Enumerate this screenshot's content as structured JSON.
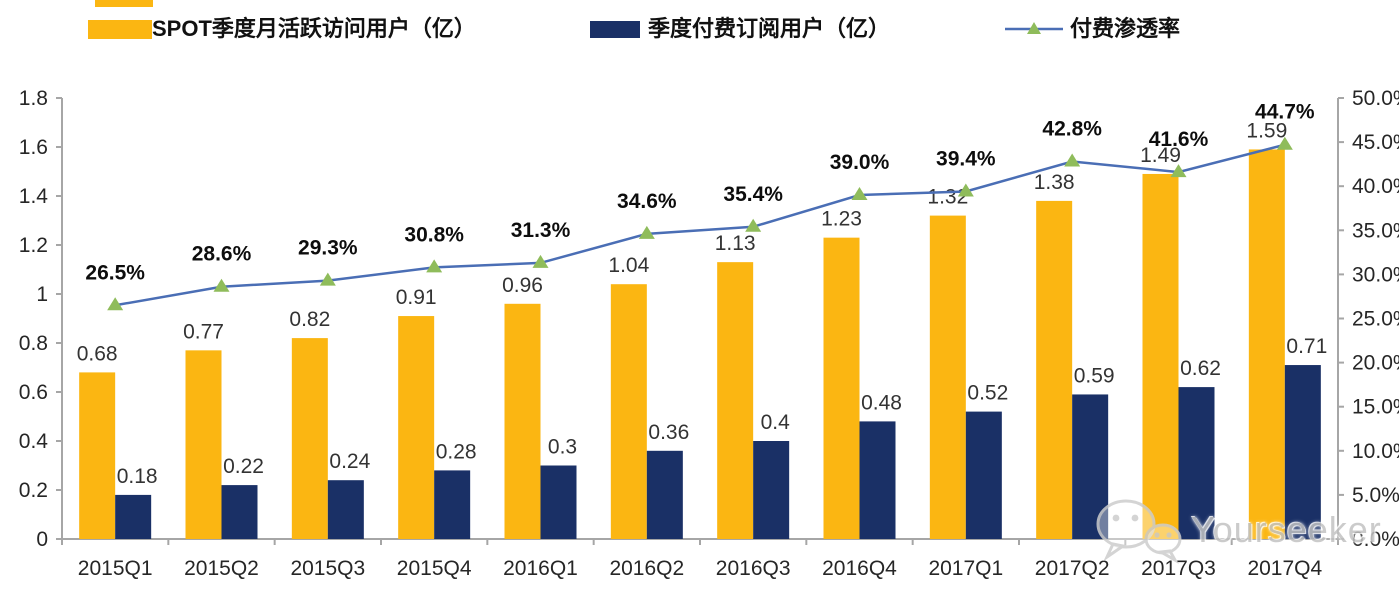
{
  "legend": {
    "items": [
      {
        "label": "SPOT季度月活跃访问用户（亿）",
        "swatch": "bar",
        "color": "#FBB612"
      },
      {
        "label": "季度付费订阅用户（亿）",
        "swatch": "bar",
        "color": "#1A3066"
      },
      {
        "label": "付费渗透率",
        "swatch": "line",
        "color": "#4A6EB5",
        "marker_color": "#8FBC5B"
      }
    ]
  },
  "chart_data": {
    "type": "combo_bar_line",
    "title": "",
    "categories": [
      "2015Q1",
      "2015Q2",
      "2015Q3",
      "2015Q4",
      "2016Q1",
      "2016Q2",
      "2016Q3",
      "2016Q4",
      "2017Q1",
      "2017Q2",
      "2017Q3",
      "2017Q4"
    ],
    "series": [
      {
        "name": "SPOT季度月活跃访问用户（亿）",
        "type": "bar",
        "axis": "left",
        "color": "#FBB612",
        "values": [
          0.68,
          0.77,
          0.82,
          0.91,
          0.96,
          1.04,
          1.13,
          1.23,
          1.32,
          1.38,
          1.49,
          1.59
        ],
        "labels": [
          "0.68",
          "0.77",
          "0.82",
          "0.91",
          "0.96",
          "1.04",
          "1.13",
          "1.23",
          "1.32",
          "1.38",
          "1.49",
          "1.59"
        ]
      },
      {
        "name": "季度付费订阅用户（亿）",
        "type": "bar",
        "axis": "left",
        "color": "#1A3066",
        "values": [
          0.18,
          0.22,
          0.24,
          0.28,
          0.3,
          0.36,
          0.4,
          0.48,
          0.52,
          0.59,
          0.62,
          0.71
        ],
        "labels": [
          "0.18",
          "0.22",
          "0.24",
          "0.28",
          "0.3",
          "0.36",
          "0.4",
          "0.48",
          "0.52",
          "0.59",
          "0.62",
          "0.71"
        ]
      },
      {
        "name": "付费渗透率",
        "type": "line",
        "axis": "right",
        "color": "#4A6EB5",
        "marker": "triangle",
        "marker_color": "#8FBC5B",
        "values": [
          26.5,
          28.6,
          29.3,
          30.8,
          31.3,
          34.6,
          35.4,
          39.0,
          39.4,
          42.8,
          41.6,
          44.7
        ],
        "labels": [
          "26.5%",
          "28.6%",
          "29.3%",
          "30.8%",
          "31.3%",
          "34.6%",
          "35.4%",
          "39.0%",
          "39.4%",
          "42.8%",
          "41.6%",
          "44.7%"
        ]
      }
    ],
    "left_axis": {
      "min": 0,
      "max": 1.8,
      "step": 0.2,
      "tick_labels": [
        "0",
        "0.2",
        "0.4",
        "0.6",
        "0.8",
        "1",
        "1.2",
        "1.4",
        "1.6",
        "1.8"
      ]
    },
    "right_axis": {
      "min": 0,
      "max": 50,
      "step": 5,
      "tick_labels": [
        "0.0%",
        "5.0%",
        "10.0%",
        "15.0%",
        "20.0%",
        "25.0%",
        "30.0%",
        "35.0%",
        "40.0%",
        "45.0%",
        "50.0%"
      ]
    },
    "grid": false,
    "legend_position": "top"
  },
  "watermark": {
    "text": "Yourseeker"
  }
}
